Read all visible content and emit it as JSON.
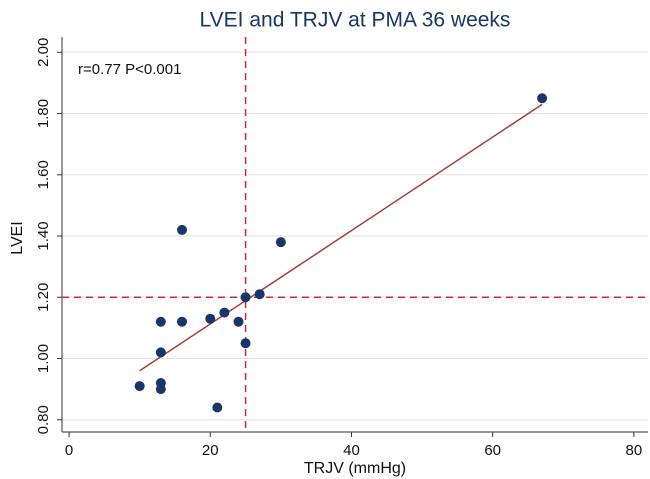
{
  "chart_data": {
    "type": "scatter",
    "title": "LVEI and TRJV at PMA 36 weeks",
    "x_label": "TRJV (mmHg)",
    "y_label": "LVEI",
    "annotation": "r=0.77 P<0.001",
    "x": [
      10,
      13,
      13,
      13,
      13,
      16,
      16,
      21,
      20,
      22,
      24,
      25,
      25,
      27,
      30,
      67
    ],
    "values": [
      0.91,
      0.92,
      0.9,
      1.02,
      1.12,
      1.12,
      1.42,
      0.84,
      1.13,
      1.15,
      1.12,
      1.2,
      1.05,
      1.21,
      1.38,
      1.85
    ],
    "color": "#1a3668",
    "fit_line": {
      "x": [
        10,
        67
      ],
      "values": [
        0.96,
        1.83
      ],
      "color": "#a0403a"
    },
    "reference_lines": {
      "x": 25,
      "y": 1.2,
      "color": "#c8302f"
    },
    "xlim": [
      -1,
      82
    ],
    "ylim": [
      0.76,
      2.05
    ],
    "xticks": [
      0,
      20,
      40,
      60,
      80
    ],
    "yticks": [
      {
        "value": 0.8,
        "label": "0.80"
      },
      {
        "value": 1.0,
        "label": "1.00"
      },
      {
        "value": 1.2,
        "label": "1.20"
      },
      {
        "value": 1.4,
        "label": "1.40"
      },
      {
        "value": 1.6,
        "label": "1.60"
      },
      {
        "value": 1.8,
        "label": "1.80"
      },
      {
        "value": 2.0,
        "label": "2.00"
      }
    ],
    "grid": true
  }
}
